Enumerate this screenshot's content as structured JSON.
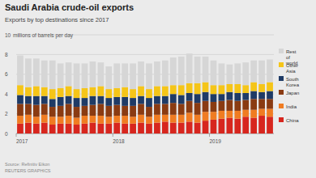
{
  "chart_data": {
    "type": "bar",
    "stacked": true,
    "title": "Saudi Arabia crude-oil exports",
    "subtitle": "Exports by top destinations since 2017",
    "y_label": "millions of barrels per day",
    "source": "Source: Refinitiv Eikon",
    "credit": "REUTERS GRAPHICS",
    "legend": "right",
    "grid": true,
    "categories": [
      "2017",
      null,
      null,
      null,
      null,
      null,
      null,
      null,
      null,
      null,
      null,
      null,
      "2018",
      null,
      null,
      null,
      null,
      null,
      null,
      null,
      null,
      null,
      null,
      null,
      "2019",
      null,
      null,
      null,
      null,
      null,
      null,
      null
    ],
    "ylim": [
      0,
      10
    ],
    "yticks": [
      0,
      2,
      4,
      6,
      8,
      10
    ],
    "series": [
      {
        "name": "China",
        "color": "#d7261e",
        "values": [
          1.0,
          1.1,
          1.0,
          1.1,
          0.9,
          1.0,
          1.0,
          0.9,
          1.0,
          1.1,
          1.0,
          1.0,
          1.1,
          1.0,
          1.0,
          1.1,
          1.0,
          1.1,
          1.2,
          1.1,
          1.1,
          1.2,
          1.1,
          1.3,
          1.4,
          1.5,
          1.6,
          1.5,
          1.7,
          1.6,
          1.8,
          1.7
        ]
      },
      {
        "name": "India",
        "color": "#f07c22",
        "values": [
          0.8,
          0.8,
          0.7,
          0.8,
          0.8,
          0.7,
          0.8,
          0.7,
          0.8,
          0.7,
          0.8,
          0.7,
          0.7,
          0.8,
          0.7,
          0.8,
          0.7,
          0.8,
          0.7,
          0.8,
          0.8,
          0.9,
          0.8,
          0.9,
          0.8,
          0.8,
          0.7,
          0.8,
          0.7,
          0.8,
          0.7,
          0.8
        ]
      },
      {
        "name": "Japan",
        "color": "#8a3b12",
        "values": [
          1.2,
          1.1,
          1.2,
          1.1,
          1.0,
          1.1,
          1.2,
          1.1,
          1.0,
          1.1,
          1.2,
          1.1,
          1.1,
          1.0,
          1.1,
          1.1,
          1.0,
          1.1,
          1.1,
          1.2,
          1.1,
          1.2,
          1.2,
          1.1,
          1.0,
          1.0,
          1.1,
          1.0,
          1.0,
          1.1,
          1.0,
          1.0
        ]
      },
      {
        "name": "South Korea",
        "color": "#1f3b66",
        "values": [
          0.9,
          0.8,
          0.9,
          0.8,
          0.8,
          0.9,
          0.8,
          0.9,
          0.8,
          0.9,
          0.8,
          0.8,
          0.8,
          0.9,
          0.8,
          0.8,
          0.9,
          0.8,
          0.8,
          0.9,
          0.9,
          0.8,
          0.9,
          0.9,
          0.8,
          0.7,
          0.8,
          0.8,
          0.7,
          0.8,
          0.7,
          0.8
        ]
      },
      {
        "name": "Other Asia",
        "color": "#f5c518",
        "values": [
          1.0,
          0.9,
          1.0,
          0.9,
          1.0,
          0.9,
          1.0,
          0.9,
          1.0,
          0.9,
          1.0,
          0.9,
          0.9,
          1.0,
          0.9,
          1.0,
          0.9,
          1.0,
          1.0,
          0.9,
          1.0,
          1.0,
          1.1,
          1.0,
          0.9,
          0.9,
          0.8,
          0.9,
          0.8,
          0.9,
          0.8,
          0.9
        ]
      },
      {
        "name": "Rest of world",
        "color": "#d6d6d6",
        "values": [
          3.0,
          2.9,
          2.8,
          2.7,
          2.9,
          2.5,
          2.4,
          2.6,
          2.5,
          2.6,
          2.4,
          2.3,
          2.5,
          2.4,
          2.6,
          2.5,
          2.6,
          2.5,
          2.6,
          2.8,
          2.9,
          3.0,
          2.7,
          2.6,
          2.5,
          2.2,
          2.0,
          2.1,
          2.3,
          2.2,
          2.4,
          2.3
        ]
      }
    ]
  }
}
